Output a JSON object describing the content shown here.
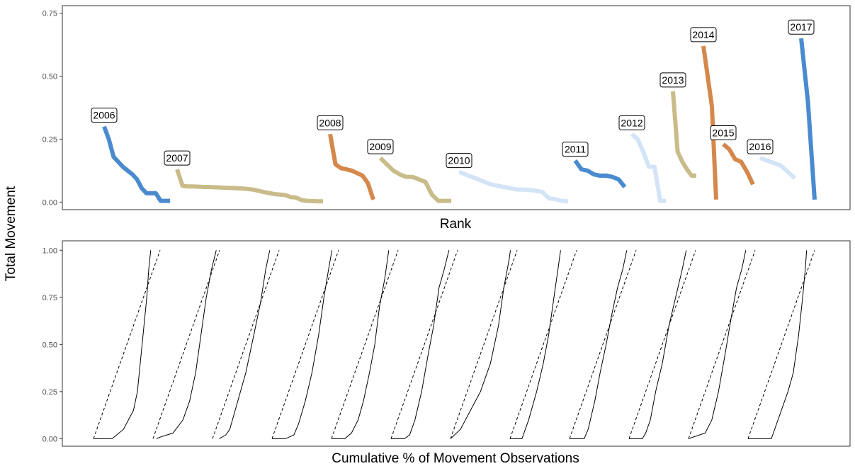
{
  "y_axis_label": "Total Movement",
  "chart_data": [
    {
      "type": "line",
      "title": "",
      "xlabel": "Rank",
      "ylabel": "Total Movement",
      "ylim": [
        -0.03,
        0.78
      ],
      "yticks": [
        0.0,
        0.25,
        0.5,
        0.75
      ],
      "ytick_labels": [
        "0.00",
        "0.25",
        "0.50",
        "0.75"
      ],
      "grid": false,
      "legend": "none",
      "series": [
        {
          "name": "2006",
          "color": "#4a8bd0",
          "values": [
            0.3,
            0.25,
            0.18,
            0.16,
            0.14,
            0.125,
            0.11,
            0.09,
            0.055,
            0.035,
            0.035,
            0.035,
            0.005,
            0.005,
            0.005
          ]
        },
        {
          "name": "2007",
          "color": "#c9bc8a",
          "values": [
            0.13,
            0.065,
            0.062,
            0.062,
            0.061,
            0.06,
            0.06,
            0.059,
            0.058,
            0.057,
            0.056,
            0.055,
            0.054,
            0.052,
            0.05,
            0.045,
            0.04,
            0.036,
            0.032,
            0.03,
            0.028,
            0.02,
            0.018,
            0.008,
            0.005,
            0.004,
            0.003,
            0.003
          ]
        },
        {
          "name": "2008",
          "color": "#d4884c",
          "values": [
            0.27,
            0.15,
            0.135,
            0.13,
            0.125,
            0.115,
            0.105,
            0.075,
            0.01
          ]
        },
        {
          "name": "2009",
          "color": "#c9bc8a",
          "values": [
            0.175,
            0.15,
            0.125,
            0.11,
            0.1,
            0.1,
            0.09,
            0.08,
            0.03,
            0.005,
            0.005,
            0.005
          ]
        },
        {
          "name": "2010",
          "color": "#d3e4f7",
          "values": [
            0.12,
            0.11,
            0.1,
            0.09,
            0.08,
            0.07,
            0.065,
            0.06,
            0.055,
            0.05,
            0.05,
            0.048,
            0.045,
            0.04,
            0.015,
            0.012,
            0.005,
            0.003
          ]
        },
        {
          "name": "2011",
          "color": "#4a8bd0",
          "values": [
            0.165,
            0.13,
            0.125,
            0.11,
            0.105,
            0.105,
            0.1,
            0.09,
            0.06
          ]
        },
        {
          "name": "2012",
          "color": "#d3e4f7",
          "values": [
            0.27,
            0.25,
            0.2,
            0.14,
            0.14,
            0.005,
            0.005
          ]
        },
        {
          "name": "2013",
          "color": "#c9bc8a",
          "values": [
            0.44,
            0.2,
            0.16,
            0.13,
            0.105,
            0.105
          ]
        },
        {
          "name": "2014",
          "color": "#d4884c",
          "values": [
            0.62,
            0.5,
            0.38,
            0.01
          ]
        },
        {
          "name": "2015",
          "color": "#d4884c",
          "values": [
            0.23,
            0.21,
            0.17,
            0.16,
            0.12,
            0.07
          ]
        },
        {
          "name": "2016",
          "color": "#d3e4f7",
          "values": [
            0.175,
            0.165,
            0.155,
            0.145,
            0.12,
            0.095
          ]
        },
        {
          "name": "2017",
          "color": "#4a8bd0",
          "values": [
            0.65,
            0.4,
            0.01
          ]
        }
      ]
    },
    {
      "type": "line",
      "title": "",
      "xlabel": "Cumulative % of Movement Observations",
      "ylabel": "Total Movement",
      "ylim": [
        -0.04,
        1.05
      ],
      "yticks": [
        0.0,
        0.25,
        0.5,
        0.75,
        1.0
      ],
      "ytick_labels": [
        "0.00",
        "0.25",
        "0.50",
        "0.75",
        "1.00"
      ],
      "grid": false,
      "legend": "none",
      "panel_count": 12,
      "reference_line": "dashed diagonal from (0,0) to (1,1) in each panel",
      "curves": [
        [
          [
            0.0,
            0.0
          ],
          [
            0.28,
            0.0
          ],
          [
            0.45,
            0.05
          ],
          [
            0.6,
            0.15
          ],
          [
            0.66,
            0.25
          ],
          [
            0.73,
            0.5
          ],
          [
            0.8,
            0.75
          ],
          [
            0.83,
            0.9
          ],
          [
            0.86,
            1.0
          ]
        ],
        [
          [
            0.05,
            0.0
          ],
          [
            0.12,
            0.01
          ],
          [
            0.3,
            0.03
          ],
          [
            0.45,
            0.1
          ],
          [
            0.55,
            0.2
          ],
          [
            0.64,
            0.35
          ],
          [
            0.72,
            0.55
          ],
          [
            0.8,
            0.75
          ],
          [
            0.88,
            0.9
          ],
          [
            0.95,
            1.0
          ]
        ],
        [
          [
            0.1,
            0.0
          ],
          [
            0.2,
            0.02
          ],
          [
            0.26,
            0.05
          ],
          [
            0.38,
            0.2
          ],
          [
            0.5,
            0.35
          ],
          [
            0.62,
            0.55
          ],
          [
            0.72,
            0.72
          ],
          [
            0.8,
            0.9
          ],
          [
            0.86,
            1.0
          ]
        ],
        [
          [
            0.0,
            0.0
          ],
          [
            0.2,
            0.0
          ],
          [
            0.33,
            0.02
          ],
          [
            0.4,
            0.08
          ],
          [
            0.5,
            0.2
          ],
          [
            0.6,
            0.35
          ],
          [
            0.7,
            0.55
          ],
          [
            0.78,
            0.75
          ],
          [
            0.85,
            0.9
          ],
          [
            0.9,
            1.0
          ]
        ],
        [
          [
            0.0,
            0.0
          ],
          [
            0.2,
            0.0
          ],
          [
            0.3,
            0.03
          ],
          [
            0.4,
            0.1
          ],
          [
            0.48,
            0.2
          ],
          [
            0.57,
            0.35
          ],
          [
            0.65,
            0.5
          ],
          [
            0.72,
            0.7
          ],
          [
            0.8,
            0.85
          ],
          [
            0.86,
            1.0
          ]
        ],
        [
          [
            0.0,
            0.0
          ],
          [
            0.2,
            0.0
          ],
          [
            0.28,
            0.02
          ],
          [
            0.36,
            0.1
          ],
          [
            0.46,
            0.25
          ],
          [
            0.56,
            0.45
          ],
          [
            0.64,
            0.6
          ],
          [
            0.72,
            0.8
          ],
          [
            0.8,
            0.9
          ],
          [
            0.87,
            1.0
          ]
        ],
        [
          [
            0.0,
            0.0
          ],
          [
            0.15,
            0.05
          ],
          [
            0.3,
            0.15
          ],
          [
            0.45,
            0.25
          ],
          [
            0.6,
            0.4
          ],
          [
            0.72,
            0.6
          ],
          [
            0.8,
            0.8
          ],
          [
            0.88,
            0.95
          ],
          [
            0.9,
            1.0
          ]
        ],
        [
          [
            0.0,
            0.0
          ],
          [
            0.18,
            0.0
          ],
          [
            0.28,
            0.1
          ],
          [
            0.4,
            0.25
          ],
          [
            0.5,
            0.4
          ],
          [
            0.58,
            0.55
          ],
          [
            0.66,
            0.75
          ],
          [
            0.72,
            0.9
          ],
          [
            0.76,
            1.0
          ]
        ],
        [
          [
            0.0,
            0.0
          ],
          [
            0.22,
            0.0
          ],
          [
            0.28,
            0.05
          ],
          [
            0.38,
            0.2
          ],
          [
            0.46,
            0.35
          ],
          [
            0.55,
            0.5
          ],
          [
            0.63,
            0.65
          ],
          [
            0.72,
            0.8
          ],
          [
            0.8,
            0.9
          ],
          [
            0.86,
            1.0
          ]
        ],
        [
          [
            0.0,
            0.0
          ],
          [
            0.2,
            0.0
          ],
          [
            0.25,
            0.03
          ],
          [
            0.32,
            0.1
          ],
          [
            0.4,
            0.25
          ],
          [
            0.5,
            0.4
          ],
          [
            0.6,
            0.6
          ],
          [
            0.7,
            0.75
          ],
          [
            0.8,
            0.9
          ],
          [
            0.86,
            1.0
          ]
        ],
        [
          [
            0.0,
            0.0
          ],
          [
            0.25,
            0.03
          ],
          [
            0.35,
            0.1
          ],
          [
            0.45,
            0.25
          ],
          [
            0.55,
            0.45
          ],
          [
            0.62,
            0.6
          ],
          [
            0.72,
            0.8
          ],
          [
            0.8,
            0.9
          ],
          [
            0.86,
            1.0
          ]
        ],
        [
          [
            0.0,
            0.0
          ],
          [
            0.35,
            0.0
          ],
          [
            0.6,
            0.25
          ],
          [
            0.68,
            0.35
          ],
          [
            0.76,
            0.55
          ],
          [
            0.82,
            0.75
          ],
          [
            0.86,
            0.9
          ],
          [
            0.88,
            1.0
          ]
        ]
      ]
    }
  ]
}
